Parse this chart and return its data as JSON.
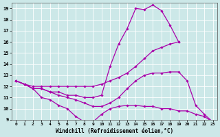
{
  "xlabel": "Windchill (Refroidissement éolien,°C)",
  "bg_color": "#cce8e8",
  "line_color": "#aa00aa",
  "xlim": [
    -0.5,
    23.5
  ],
  "ylim": [
    9,
    19.5
  ],
  "xticks": [
    0,
    1,
    2,
    3,
    4,
    5,
    6,
    7,
    8,
    9,
    10,
    11,
    12,
    13,
    14,
    15,
    16,
    17,
    18,
    19,
    20,
    21,
    22,
    23
  ],
  "yticks": [
    9,
    10,
    11,
    12,
    13,
    14,
    15,
    16,
    17,
    18,
    19
  ],
  "grid_color": "#ffffff",
  "curves": [
    {
      "x": [
        0,
        1,
        2,
        3,
        4,
        5,
        6,
        7,
        8,
        9,
        10,
        11,
        12,
        13,
        14,
        15,
        16,
        17,
        18,
        19
      ],
      "y": [
        12.5,
        12.2,
        11.8,
        11.8,
        11.5,
        11.5,
        11.2,
        11.2,
        11.0,
        11.0,
        11.2,
        13.8,
        15.8,
        17.2,
        19.0,
        18.9,
        19.3,
        18.8,
        17.5,
        16.0
      ]
    },
    {
      "x": [
        0,
        1,
        2,
        3,
        4,
        5,
        6,
        7,
        8,
        9,
        10,
        11,
        12,
        13,
        14,
        15,
        16,
        17,
        18,
        19
      ],
      "y": [
        12.5,
        12.2,
        12.0,
        12.0,
        12.0,
        12.0,
        12.0,
        12.0,
        12.0,
        12.0,
        12.2,
        12.5,
        12.8,
        13.2,
        13.8,
        14.5,
        15.2,
        15.5,
        15.8,
        16.0
      ]
    },
    {
      "x": [
        0,
        1,
        2,
        3,
        4,
        5,
        6,
        7,
        8,
        9,
        10,
        11,
        12,
        13,
        14,
        15,
        16,
        17,
        18,
        19,
        20,
        21,
        22,
        23
      ],
      "y": [
        12.5,
        12.2,
        11.8,
        11.8,
        11.5,
        11.2,
        11.0,
        10.8,
        10.5,
        10.2,
        10.2,
        10.5,
        11.0,
        11.8,
        12.5,
        13.0,
        13.2,
        13.2,
        13.3,
        13.3,
        12.5,
        10.3,
        9.5,
        8.8
      ]
    },
    {
      "x": [
        0,
        1,
        2,
        3,
        4,
        5,
        6,
        7,
        8,
        9,
        10,
        11,
        12,
        13,
        14,
        15,
        16,
        17,
        18,
        19,
        20,
        21,
        22,
        23
      ],
      "y": [
        12.5,
        12.2,
        11.8,
        11.0,
        10.8,
        10.3,
        10.0,
        9.3,
        8.8,
        8.8,
        9.5,
        10.0,
        10.2,
        10.3,
        10.3,
        10.2,
        10.2,
        10.0,
        10.0,
        9.8,
        9.8,
        9.5,
        9.3,
        8.8
      ]
    }
  ]
}
